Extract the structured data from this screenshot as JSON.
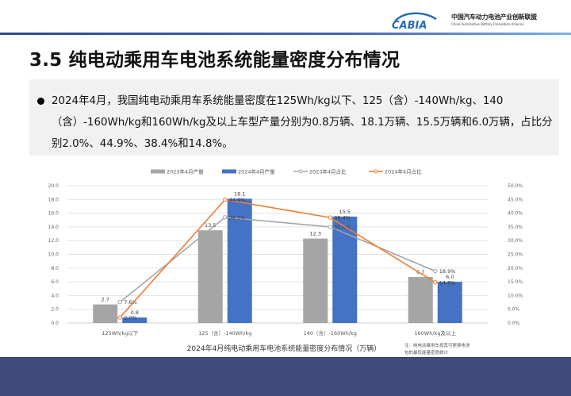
{
  "header": {
    "logo_mark": "CABIA",
    "org_name_cn": "中国汽车动力电池产业创新联盟",
    "org_name_en": "China Automotive Battery Innovation Alliance"
  },
  "page": {
    "title": "3.5 纯电动乘用车电池系统能量密度分布情况",
    "summary": "2024年4月，我国纯电动乘用车系统能量密度在125Wh/kg以下、125（含）-140Wh/kg、140（含）-160Wh/kg和160Wh/kg及以上车型产量分别为0.8万辆、18.1万辆、15.5万辆和6.0万辆，占比分别2.0%、44.9%、38.4%和14.8%。"
  },
  "chart_data": {
    "type": "bar",
    "title": "2024年4月纯电动乘用车电池系统能量密度分布情况（万辆）",
    "note": "注：纯电动乘用车按其可更换电池包的最低能量密度统计",
    "categories": [
      "125Wh/kg以下",
      "125（含）-140Wh/kg",
      "140（含）-160Wh/kg",
      "160Wh/kg及以上"
    ],
    "series": [
      {
        "name": "2023年4月产量",
        "type": "bar",
        "axis": "left",
        "color": "#a5a5a5",
        "values": [
          2.7,
          13.5,
          12.3,
          6.7
        ]
      },
      {
        "name": "2024年4月产量",
        "type": "bar",
        "axis": "left",
        "color": "#4472c4",
        "values": [
          0.8,
          18.1,
          15.5,
          6.0
        ]
      },
      {
        "name": "2023年4月占比",
        "type": "line",
        "axis": "right",
        "color": "#a5a5a5",
        "values": [
          7.6,
          38.5,
          35.0,
          18.9
        ],
        "labels": [
          "7.6%",
          "38.5%",
          "35.0%",
          "18.9%"
        ]
      },
      {
        "name": "2024年4月占比",
        "type": "line",
        "axis": "right",
        "color": "#ed7d31",
        "values": [
          2.0,
          44.9,
          38.4,
          14.8
        ],
        "labels": [
          "2.0%",
          "44.9%",
          "38.4%",
          "14.8%"
        ]
      }
    ],
    "left_axis": {
      "min": 0,
      "max": 20,
      "step": 2,
      "ticks": [
        "0.0",
        "2.0",
        "4.0",
        "6.0",
        "8.0",
        "10.0",
        "12.0",
        "14.0",
        "16.0",
        "18.0",
        "20.0"
      ]
    },
    "right_axis": {
      "min": 0,
      "max": 50,
      "step": 5,
      "ticks": [
        "0.0%",
        "5.0%",
        "10.0%",
        "15.0%",
        "20.0%",
        "25.0%",
        "30.0%",
        "35.0%",
        "40.0%",
        "45.0%",
        "50.0%"
      ]
    },
    "grid": true,
    "legend_position": "top"
  },
  "colors": {
    "footer": "#404c7d",
    "header_rule": "#2c4a8c",
    "text_box_bg": "#f1f1f1"
  }
}
